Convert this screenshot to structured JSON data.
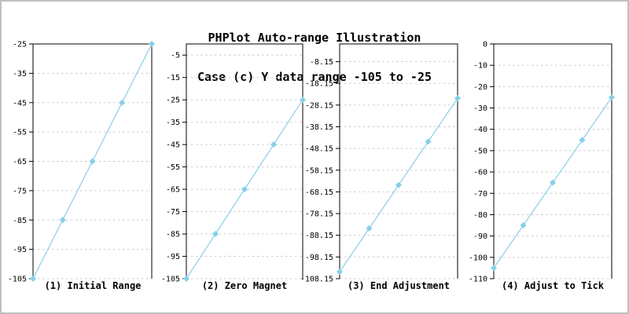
{
  "header": {
    "title_line1": "PHPlot Auto-range Illustration",
    "title_line2": "Case (c) Y data range -105 to -25"
  },
  "colors": {
    "line": "#87CEEB",
    "marker": "#87CEEB",
    "grid": "#cccccc",
    "axis": "#000000",
    "text": "#000000",
    "background": "#ffffff",
    "image_border": "#c0c0c0"
  },
  "chart_data": [
    {
      "type": "line",
      "title": "(1) Initial Range",
      "series": [
        {
          "name": "data",
          "y": [
            -105,
            -85,
            -65,
            -45,
            -25
          ]
        }
      ],
      "x_spacing": "equal",
      "ylim": [
        -105,
        -25
      ],
      "yticks": [
        -25,
        -35,
        -45,
        -55,
        -65,
        -75,
        -85,
        -95,
        -105
      ],
      "ytick_labels": [
        "-25",
        "-35",
        "-45",
        "-55",
        "-65",
        "-75",
        "-85",
        "-95",
        "-105"
      ],
      "grid": "horizontal-dashed",
      "marker": "diamond",
      "legend": "none"
    },
    {
      "type": "line",
      "title": "(2) Zero Magnet",
      "series": [
        {
          "name": "data",
          "y": [
            -105,
            -85,
            -65,
            -45,
            -25
          ]
        }
      ],
      "x_spacing": "equal",
      "ylim": [
        -105,
        0
      ],
      "yticks": [
        -5,
        -15,
        -25,
        -35,
        -45,
        -55,
        -65,
        -75,
        -85,
        -95,
        -105
      ],
      "ytick_labels": [
        "-5",
        "-15",
        "-25",
        "-35",
        "-45",
        "-55",
        "-65",
        "-75",
        "-85",
        "-95",
        "-105"
      ],
      "grid": "horizontal-dashed",
      "marker": "diamond",
      "legend": "none"
    },
    {
      "type": "line",
      "title": "(3) End Adjustment",
      "series": [
        {
          "name": "data",
          "y": [
            -105,
            -85,
            -65,
            -45,
            -25
          ]
        }
      ],
      "x_spacing": "equal",
      "ylim": [
        -108.15,
        0
      ],
      "yticks": [
        -8.15,
        -18.15,
        -28.15,
        -38.15,
        -48.15,
        -58.15,
        -68.15,
        -78.15,
        -88.15,
        -98.15,
        -108.15
      ],
      "ytick_labels": [
        "-8.15",
        "-18.15",
        "-28.15",
        "-38.15",
        "-48.15",
        "-58.15",
        "-68.15",
        "-78.15",
        "-88.15",
        "-98.15",
        "-108.15"
      ],
      "grid": "horizontal-dashed",
      "marker": "diamond",
      "legend": "none"
    },
    {
      "type": "line",
      "title": "(4) Adjust to Tick",
      "series": [
        {
          "name": "data",
          "y": [
            -105,
            -85,
            -65,
            -45,
            -25
          ]
        }
      ],
      "x_spacing": "equal",
      "ylim": [
        -110,
        0
      ],
      "yticks": [
        0,
        -10,
        -20,
        -30,
        -40,
        -50,
        -60,
        -70,
        -80,
        -90,
        -100,
        -110
      ],
      "ytick_labels": [
        "0",
        "-10",
        "-20",
        "-30",
        "-40",
        "-50",
        "-60",
        "-70",
        "-80",
        "-90",
        "-100",
        "-110"
      ],
      "grid": "horizontal-dashed",
      "marker": "diamond",
      "legend": "none"
    }
  ]
}
